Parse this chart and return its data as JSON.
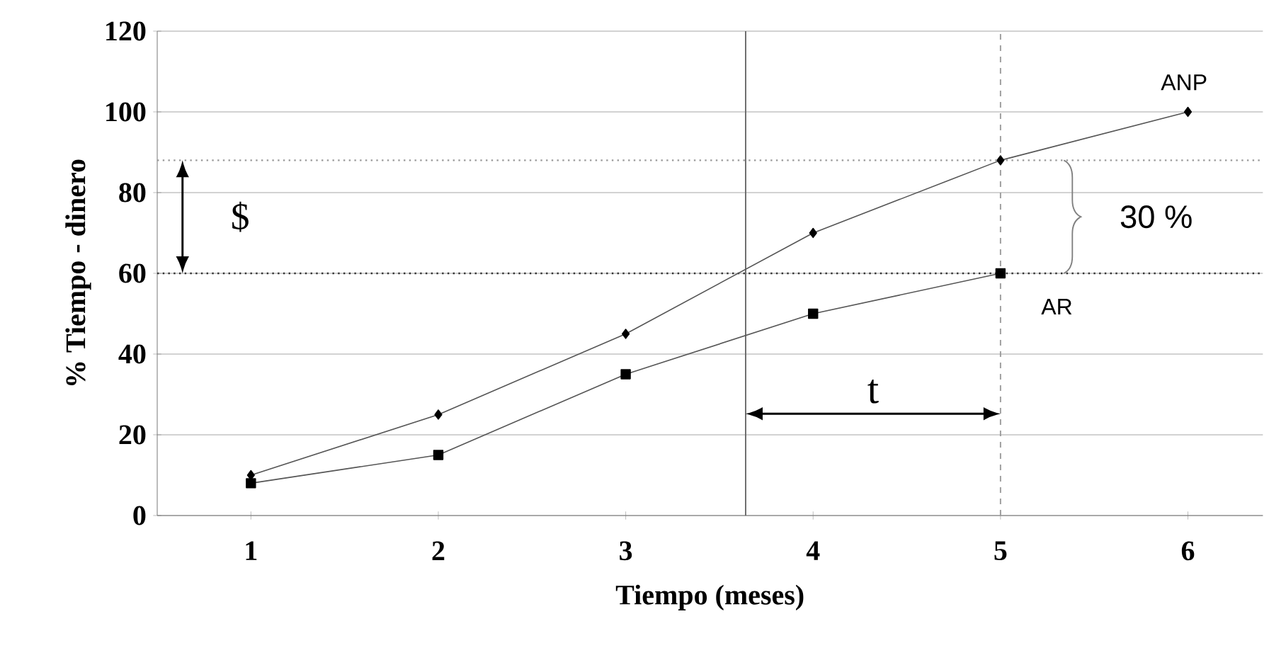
{
  "chart_data": {
    "type": "line",
    "xlabel": "Tiempo (meses)",
    "ylabel": "% Tiempo - dinero",
    "x": [
      1,
      2,
      3,
      4,
      5,
      6
    ],
    "xlim": [
      0.5,
      6.4
    ],
    "xticks": [
      1,
      2,
      3,
      4,
      5,
      6
    ],
    "ylim": [
      0,
      120
    ],
    "yticks": [
      0,
      20,
      40,
      60,
      80,
      100,
      120
    ],
    "grid": "y",
    "legend": false,
    "series": [
      {
        "name": "ANP",
        "color": "#555555",
        "marker": "diamond",
        "values": [
          10,
          25,
          45,
          70,
          88,
          100
        ]
      },
      {
        "name": "AR",
        "color": "#555555",
        "marker": "square",
        "values": [
          8,
          15,
          35,
          50,
          60,
          null
        ]
      }
    ],
    "ref_lines": [
      {
        "axis": "y",
        "value": 88,
        "line_style": "dotted",
        "color": "#999999"
      },
      {
        "axis": "y",
        "value": 60,
        "line_style": "dotted",
        "color": "#333333"
      },
      {
        "axis": "x",
        "value": 3.64,
        "line_style": "solid",
        "color": "#666666"
      },
      {
        "axis": "x",
        "value": 5,
        "line_style": "dashed",
        "color": "#999999"
      }
    ],
    "annotations": [
      "$",
      "30 %",
      "t"
    ]
  }
}
